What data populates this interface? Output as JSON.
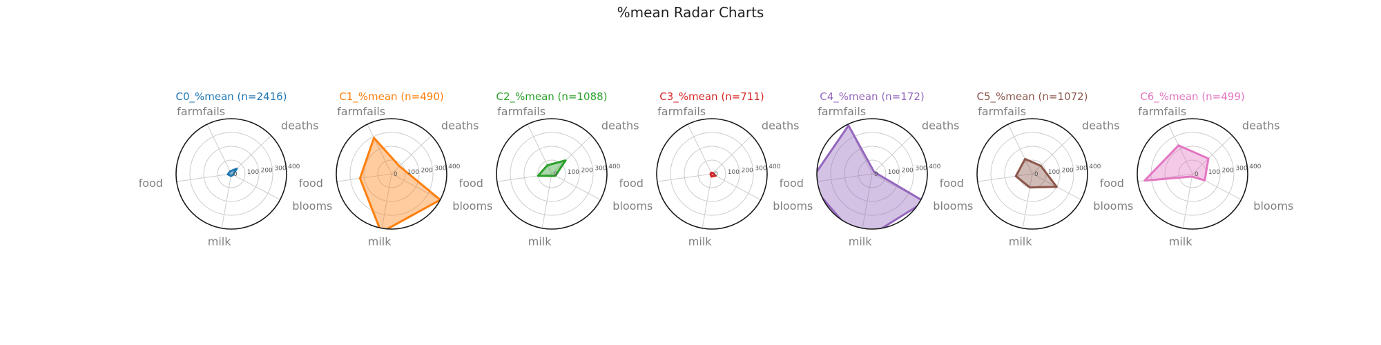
{
  "figure": {
    "title": "%mean Radar Charts"
  },
  "chart_data": [
    {
      "type": "radar",
      "title": "C0_%mean (n=2416)",
      "color": "#1f77b4",
      "axes": [
        "deaths",
        "farmfails",
        "food",
        "milk",
        "blooms"
      ],
      "values": [
        55,
        20,
        25,
        15,
        15
      ],
      "rlim": [
        0,
        400
      ],
      "rticks": [
        "0",
        "100",
        "200",
        "300",
        "400"
      ],
      "grid": true
    },
    {
      "type": "radar",
      "title": "C1_%mean (n=490)",
      "color": "#ff7f0e",
      "axes": [
        "deaths",
        "farmfails",
        "food",
        "milk",
        "blooms"
      ],
      "values": [
        80,
        290,
        230,
        430,
        400
      ],
      "rlim": [
        0,
        400
      ],
      "rticks": [
        "0",
        "100",
        "200",
        "300",
        "400"
      ],
      "grid": true
    },
    {
      "type": "radar",
      "title": "C2_%mean (n=1088)",
      "color": "#2ca02c",
      "axes": [
        "deaths",
        "farmfails",
        "food",
        "milk",
        "blooms"
      ],
      "values": [
        140,
        70,
        100,
        15,
        30
      ],
      "rlim": [
        0,
        400
      ],
      "rticks": [
        "0",
        "100",
        "200",
        "300",
        "400"
      ],
      "grid": true
    },
    {
      "type": "radar",
      "title": "C3_%mean (n=711)",
      "color": "#d62728",
      "axes": [
        "deaths",
        "farmfails",
        "food",
        "milk",
        "blooms"
      ],
      "values": [
        10,
        10,
        10,
        20,
        30
      ],
      "rlim": [
        0,
        400
      ],
      "rticks": [
        "0",
        "100",
        "200",
        "300",
        "400"
      ],
      "grid": true
    },
    {
      "type": "radar",
      "title": "C4_%mean (n=172)",
      "color": "#9467bd",
      "axes": [
        "deaths",
        "farmfails",
        "food",
        "milk",
        "blooms"
      ],
      "values": [
        20,
        390,
        460,
        500,
        430
      ],
      "rlim": [
        0,
        400
      ],
      "rticks": [
        "0",
        "100",
        "200",
        "300",
        "400"
      ],
      "grid": true
    },
    {
      "type": "radar",
      "title": "C5_%mean (n=1072)",
      "color": "#8c564b",
      "axes": [
        "deaths",
        "farmfails",
        "food",
        "milk",
        "blooms"
      ],
      "values": [
        85,
        120,
        120,
        100,
        200
      ],
      "rlim": [
        0,
        400
      ],
      "rticks": [
        "0",
        "100",
        "200",
        "300",
        "400"
      ],
      "grid": true
    },
    {
      "type": "radar",
      "title": "C6_%mean (n=499)",
      "color": "#e377c2",
      "axes": [
        "deaths",
        "farmfails",
        "food",
        "milk",
        "blooms"
      ],
      "values": [
        160,
        230,
        350,
        20,
        100
      ],
      "rlim": [
        0,
        400
      ],
      "rticks": [
        "0",
        "100",
        "200",
        "300",
        "400"
      ],
      "grid": true
    }
  ]
}
